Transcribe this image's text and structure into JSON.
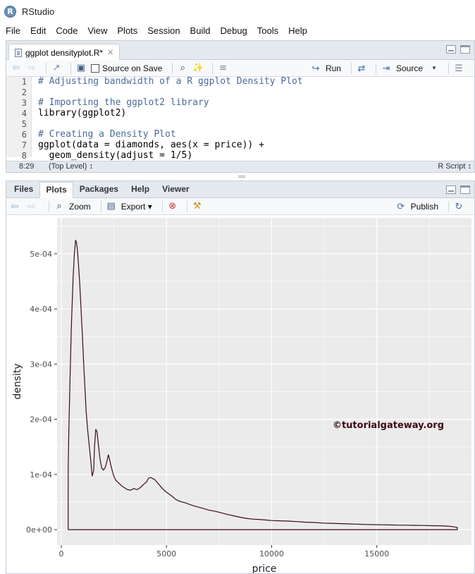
{
  "window": {
    "title": "RStudio",
    "logo_letter": "R"
  },
  "menu": [
    "File",
    "Edit",
    "Code",
    "View",
    "Plots",
    "Session",
    "Build",
    "Debug",
    "Tools",
    "Help"
  ],
  "editor": {
    "tab_label": "ggplot densityplot.R*",
    "toolbar": {
      "source_on_save": "Source on Save",
      "run": "Run",
      "source": "Source"
    },
    "lines": [
      {
        "num": "1",
        "text": "# Adjusting bandwidth of a R ggplot Density Plot",
        "comment": true
      },
      {
        "num": "2",
        "text": "",
        "comment": false
      },
      {
        "num": "3",
        "text": "# Importing the ggplot2 library",
        "comment": true
      },
      {
        "num": "4",
        "text": "library(ggplot2)",
        "comment": false
      },
      {
        "num": "5",
        "text": "",
        "comment": false
      },
      {
        "num": "6",
        "text": "# Creating a Density Plot",
        "comment": true
      },
      {
        "num": "7",
        "text": "ggplot(data = diamonds, aes(x = price)) +",
        "comment": false
      },
      {
        "num": "8",
        "text": "  geom_density(adjust = 1/5)",
        "comment": false
      }
    ],
    "status": {
      "cursor": "8:29",
      "scope": "(Top Level) ↕",
      "file_type": "R Script ↕"
    }
  },
  "plots_pane": {
    "tabs": [
      "Files",
      "Plots",
      "Packages",
      "Help",
      "Viewer"
    ],
    "active_tab": "Plots",
    "toolbar": {
      "zoom": "Zoom",
      "export": "Export ▾",
      "publish": "Publish"
    }
  },
  "watermark": "©tutorialgateway.org",
  "colors": {
    "panel_bg": "#ebebeb",
    "grid": "#ffffff",
    "density_line": "#3d0a14"
  },
  "chart_data": {
    "type": "line",
    "title": "",
    "xlabel": "price",
    "ylabel": "density",
    "xlim": [
      -200,
      19500
    ],
    "ylim": [
      -2.8e-05,
      0.000565
    ],
    "x_ticks": [
      0,
      5000,
      10000,
      15000
    ],
    "x_tick_labels": [
      "0",
      "5000",
      "10000",
      "15000"
    ],
    "y_ticks": [
      0,
      0.0001,
      0.0002,
      0.0003,
      0.0004,
      0.0005
    ],
    "y_tick_labels": [
      "0e+00",
      "1e-04",
      "2e-04",
      "3e-04",
      "4e-04",
      "5e-04"
    ],
    "grid": true,
    "series": [
      {
        "x": [
          326,
          330,
          360,
          420,
          480,
          560,
          620,
          680,
          720,
          770,
          820,
          880,
          940,
          1000,
          1060,
          1120,
          1180,
          1250,
          1320,
          1400,
          1470,
          1540,
          1580,
          1640,
          1700,
          1760,
          1840,
          1920,
          2000,
          2080,
          2160,
          2240,
          2320,
          2380,
          2450,
          2520,
          2600,
          2700,
          2800,
          2900,
          3000,
          3150,
          3300,
          3450,
          3600,
          3750,
          3900,
          4050,
          4150,
          4250,
          4350,
          4450,
          4550,
          4650,
          4750,
          4900,
          5050,
          5250,
          5450,
          5650,
          5900,
          6150,
          6400,
          6700,
          7000,
          7300,
          7600,
          7900,
          8200,
          8500,
          8800,
          9100,
          9400,
          9700,
          10000,
          10400,
          10800,
          11200,
          11600,
          12000,
          12400,
          12800,
          13200,
          13600,
          14000,
          14400,
          14800,
          15200,
          15600,
          16000,
          16400,
          16800,
          17200,
          17600,
          18000,
          18300,
          18600,
          18823,
          18823,
          326
        ],
        "y": [
          0,
          0.000115,
          0.00018,
          0.00028,
          0.00037,
          0.000455,
          0.0005,
          0.000525,
          0.00052,
          0.000505,
          0.00048,
          0.000445,
          0.0004,
          0.000355,
          0.000305,
          0.00026,
          0.000215,
          0.000182,
          0.000155,
          0.000125,
          9.7e-05,
          0.000107,
          0.00015,
          0.000182,
          0.000177,
          0.000155,
          0.000128,
          0.000112,
          0.000108,
          0.000112,
          0.000122,
          0.000136,
          0.000123,
          0.000113,
          0.000103,
          9.45e-05,
          8.9e-05,
          8.55e-05,
          8.2e-05,
          7.85e-05,
          7.6e-05,
          7.25e-05,
          7.15e-05,
          7.45e-05,
          7.25e-05,
          7.6e-05,
          8.15e-05,
          8.65e-05,
          9.3e-05,
          9.45e-05,
          9.25e-05,
          9.05e-05,
          8.6e-05,
          8.15e-05,
          7.7e-05,
          7.1e-05,
          6.65e-05,
          6.1e-05,
          5.45e-05,
          5.1e-05,
          4.85e-05,
          4.5e-05,
          4.2e-05,
          3.9e-05,
          3.55e-05,
          3.35e-05,
          3.05e-05,
          2.75e-05,
          2.5e-05,
          2.25e-05,
          2.05e-05,
          1.9e-05,
          1.85e-05,
          1.75e-05,
          1.65e-05,
          1.6e-05,
          1.55e-05,
          1.45e-05,
          1.35e-05,
          1.3e-05,
          1.2e-05,
          1.15e-05,
          1.1e-05,
          1.05e-05,
          1e-05,
          9.5e-06,
          9e-06,
          8.8e-06,
          8.5e-06,
          8.2e-06,
          8e-06,
          7.8e-06,
          7.5e-06,
          7.2e-06,
          7e-06,
          6.5e-06,
          5.5e-06,
          4e-06,
          0,
          0
        ]
      }
    ]
  }
}
